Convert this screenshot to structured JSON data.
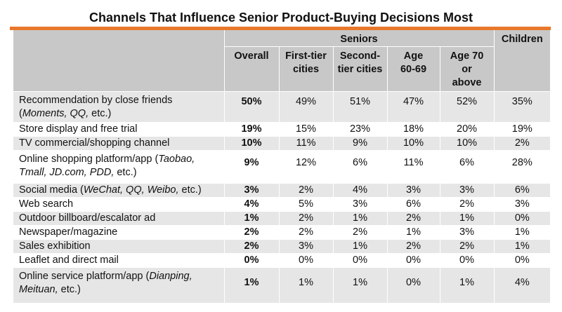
{
  "title": "Channels That Influence Senior Product-Buying Decisions Most",
  "accent_color": "#e8782a",
  "header": {
    "group_seniors": "Seniors",
    "group_children": "Children",
    "columns": [
      "Overall",
      "First-tier cities",
      "Second-tier cities",
      "Age 60-69",
      "Age 70 or above"
    ]
  },
  "rows": [
    {
      "label": "Recommendation by close friends",
      "label_italic_part": "(Moments, QQ, etc.)",
      "overall": "50%",
      "first_tier": "49%",
      "second_tier": "51%",
      "age_60_69": "47%",
      "age_70_plus": "52%",
      "children": "35%"
    },
    {
      "label": "Store display and free trial",
      "overall": "19%",
      "first_tier": "15%",
      "second_tier": "23%",
      "age_60_69": "18%",
      "age_70_plus": "20%",
      "children": "19%"
    },
    {
      "label": "TV commercial/shopping channel",
      "overall": "10%",
      "first_tier": "11%",
      "second_tier": "9%",
      "age_60_69": "10%",
      "age_70_plus": "10%",
      "children": "2%"
    },
    {
      "label": "Online shopping platform/app (Taobao, Tmall, JD.com, PDD, etc.)",
      "overall": "9%",
      "first_tier": "12%",
      "second_tier": "6%",
      "age_60_69": "11%",
      "age_70_plus": "6%",
      "children": "28%"
    },
    {
      "label": "Social media (WeChat, QQ, Weibo, etc.)",
      "overall": "3%",
      "first_tier": "2%",
      "second_tier": "4%",
      "age_60_69": "3%",
      "age_70_plus": "3%",
      "children": "6%"
    },
    {
      "label": "Web search",
      "overall": "4%",
      "first_tier": "5%",
      "second_tier": "3%",
      "age_60_69": "6%",
      "age_70_plus": "2%",
      "children": "3%"
    },
    {
      "label": "Outdoor billboard/escalator ad",
      "overall": "1%",
      "first_tier": "2%",
      "second_tier": "1%",
      "age_60_69": "2%",
      "age_70_plus": "1%",
      "children": "0%"
    },
    {
      "label": "Newspaper/magazine",
      "overall": "2%",
      "first_tier": "2%",
      "second_tier": "2%",
      "age_60_69": "1%",
      "age_70_plus": "3%",
      "children": "1%"
    },
    {
      "label": "Sales exhibition",
      "overall": "2%",
      "first_tier": "3%",
      "second_tier": "1%",
      "age_60_69": "2%",
      "age_70_plus": "2%",
      "children": "1%"
    },
    {
      "label": "Leaflet and direct mail",
      "overall": "0%",
      "first_tier": "0%",
      "second_tier": "0%",
      "age_60_69": "0%",
      "age_70_plus": "0%",
      "children": "0%"
    },
    {
      "label": "Online service platform/app (Dianping, Meituan, etc.)",
      "overall": "1%",
      "first_tier": "1%",
      "second_tier": "1%",
      "age_60_69": "0%",
      "age_70_plus": "1%",
      "children": "4%"
    }
  ]
}
